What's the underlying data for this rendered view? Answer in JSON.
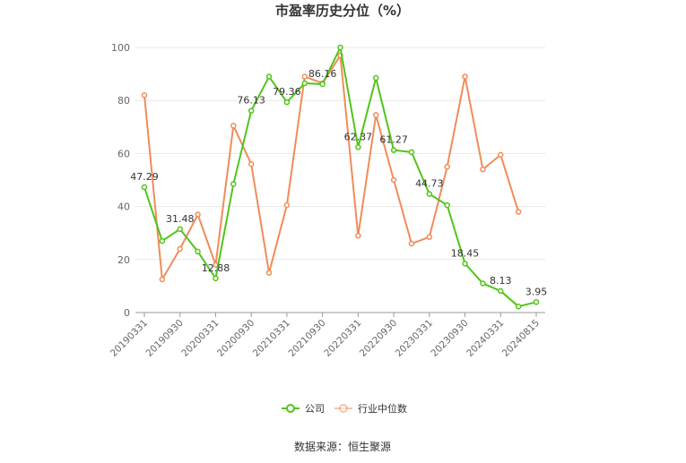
{
  "chart_data": {
    "type": "line",
    "title": "市盈率历史分位（%）",
    "ylim": [
      0,
      100
    ],
    "y_ticks": [
      0,
      20,
      40,
      60,
      80,
      100
    ],
    "x_tick_labels": [
      "20190331",
      "20190930",
      "20200331",
      "20200930",
      "20210331",
      "20210930",
      "20220331",
      "20220930",
      "20230331",
      "20230930",
      "20240331",
      "20240815"
    ],
    "x": [
      "20190331",
      "20190630",
      "20190930",
      "20191231",
      "20200331",
      "20200630",
      "20200930",
      "20201231",
      "20210331",
      "20210630",
      "20210930",
      "20211231",
      "20220331",
      "20220630",
      "20220930",
      "20221231",
      "20230331",
      "20230630",
      "20230930",
      "20231231",
      "20240331",
      "20240630",
      "20240815"
    ],
    "series": [
      {
        "name": "公司",
        "color": "#52c41a",
        "values": [
          47.29,
          27,
          31.48,
          23,
          12.88,
          48.5,
          76.13,
          89,
          79.36,
          86.5,
          86.16,
          100,
          62.37,
          88.5,
          61.27,
          60.5,
          44.73,
          40.5,
          18.45,
          11,
          8.13,
          2.3,
          3.95
        ],
        "labels": {
          "0": "47.29",
          "2": "31.48",
          "4": "12.88",
          "6": "76.13",
          "8": "79.36",
          "10": "86.16",
          "12": "62.37",
          "14": "61.27",
          "16": "44.73",
          "18": "18.45",
          "20": "8.13",
          "22": "3.95"
        }
      },
      {
        "name": "行业中位数",
        "color": "#f08c5a",
        "values": [
          82,
          12.5,
          24,
          37,
          18,
          70.5,
          56,
          15,
          40.5,
          89,
          86.5,
          97,
          29,
          74.5,
          50,
          26,
          28.5,
          55,
          89,
          54,
          59.5,
          38,
          null
        ]
      }
    ],
    "legend_position": "bottom-center",
    "grid": true,
    "source_text": "数据来源：恒生聚源"
  }
}
